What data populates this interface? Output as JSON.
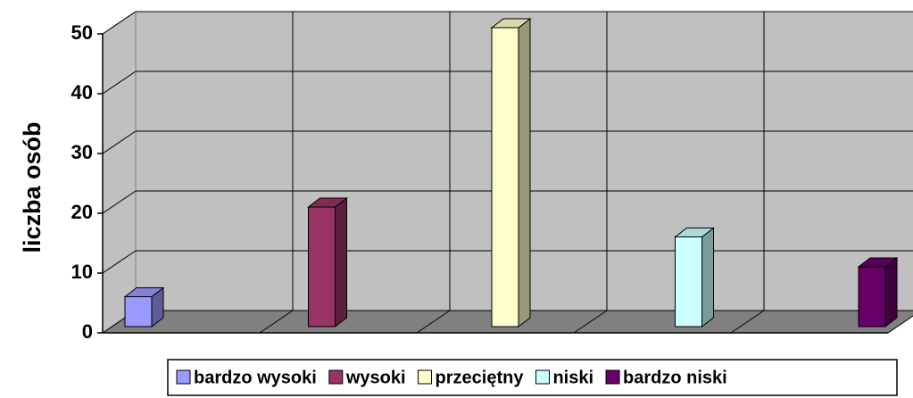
{
  "chart_data": {
    "type": "bar",
    "ylabel": "liczba osób",
    "categories": [
      null
    ],
    "series": [
      {
        "name": "bardzo wysoki",
        "color": "#9999ff",
        "values": [
          5
        ]
      },
      {
        "name": "wysoki",
        "color": "#993366",
        "values": [
          20
        ]
      },
      {
        "name": "przeciętny",
        "color": "#ffffcc",
        "values": [
          50
        ]
      },
      {
        "name": "niski",
        "color": "#ccffff",
        "values": [
          15
        ]
      },
      {
        "name": "bardzo niski",
        "color": "#660066",
        "values": [
          10
        ]
      }
    ],
    "ylim": [
      0,
      50
    ],
    "yticks": [
      0,
      10,
      20,
      30,
      40,
      50
    ],
    "grid": true,
    "legend": "bottom"
  }
}
